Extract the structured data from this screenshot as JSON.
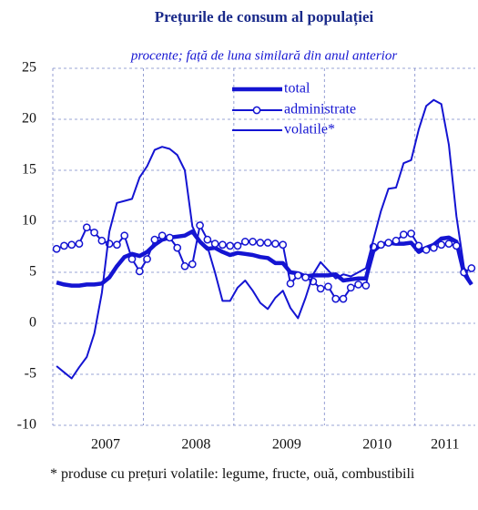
{
  "chart_data": {
    "type": "line",
    "title": "Prețurile de consum al populației",
    "subtitle": "procente; față de luna similară din anul anterior",
    "footnote": "* produse cu prețuri volatile: legume, fructe, ouă, combustibili",
    "categories": [
      null,
      null,
      null,
      null,
      null,
      null,
      "2007",
      null,
      null,
      null,
      null,
      null,
      null,
      null,
      null,
      null,
      null,
      null,
      "2008",
      null,
      null,
      null,
      null,
      null,
      null,
      null,
      null,
      null,
      null,
      null,
      "2009",
      null,
      null,
      null,
      null,
      null,
      null,
      null,
      null,
      null,
      null,
      null,
      "2010",
      null,
      null,
      null,
      null,
      null,
      null,
      null,
      null,
      "2011",
      null,
      null,
      null,
      null
    ],
    "ylim": [
      -10,
      25
    ],
    "yticks": [
      -10,
      -5,
      0,
      5,
      10,
      15,
      20,
      25
    ],
    "grid": true,
    "series": [
      {
        "name": "total",
        "color": "#1414d2",
        "style": "thick",
        "values": [
          4.0,
          3.8,
          3.7,
          3.7,
          3.8,
          3.8,
          3.9,
          4.5,
          5.6,
          6.5,
          6.8,
          6.6,
          7.0,
          7.7,
          8.2,
          8.4,
          8.5,
          8.6,
          9.0,
          8.0,
          7.3,
          7.4,
          7.0,
          6.7,
          6.9,
          6.8,
          6.7,
          6.5,
          6.4,
          5.9,
          5.9,
          5.0,
          4.9,
          4.6,
          4.7,
          4.7,
          4.7,
          4.8,
          4.2,
          4.3,
          4.4,
          4.4,
          7.1,
          7.7,
          7.9,
          7.8,
          7.8,
          7.9,
          7.0,
          7.4,
          7.7,
          8.3,
          8.4,
          8.0,
          4.9,
          3.8
        ]
      },
      {
        "name": "administrate",
        "color": "#1414d2",
        "style": "markers",
        "values": [
          7.3,
          7.6,
          7.7,
          7.8,
          9.4,
          8.9,
          8.1,
          7.8,
          7.7,
          8.6,
          6.3,
          5.1,
          6.3,
          8.2,
          8.6,
          8.4,
          7.4,
          5.6,
          5.8,
          9.6,
          8.2,
          7.8,
          7.7,
          7.6,
          7.6,
          8.0,
          8.0,
          7.9,
          7.9,
          7.8,
          7.7,
          3.9,
          4.7,
          4.5,
          4.1,
          3.4,
          3.6,
          2.4,
          2.4,
          3.5,
          3.8,
          3.7,
          7.5,
          7.7,
          7.9,
          8.1,
          8.7,
          8.8,
          7.6,
          7.2,
          7.4,
          7.7,
          7.8,
          7.6,
          5.0,
          5.4
        ]
      },
      {
        "name": "volatile*",
        "color": "#1414d2",
        "style": "thin",
        "values": [
          -4.2,
          -4.8,
          -5.4,
          -4.3,
          -3.3,
          -1.0,
          3.0,
          9.0,
          11.8,
          12.0,
          12.2,
          14.3,
          15.4,
          17.0,
          17.3,
          17.1,
          16.5,
          15.0,
          9.5,
          7.9,
          7.5,
          5.0,
          2.2,
          2.2,
          3.5,
          4.2,
          3.2,
          2.0,
          1.4,
          2.5,
          3.2,
          1.5,
          0.5,
          2.5,
          4.8,
          6.0,
          5.2,
          4.4,
          4.8,
          4.6,
          5.0,
          5.4,
          8.2,
          11.0,
          13.2,
          13.3,
          15.7,
          16.0,
          19.0,
          21.3,
          21.9,
          21.5,
          17.5,
          10.5,
          5.5,
          3.8
        ]
      }
    ]
  }
}
